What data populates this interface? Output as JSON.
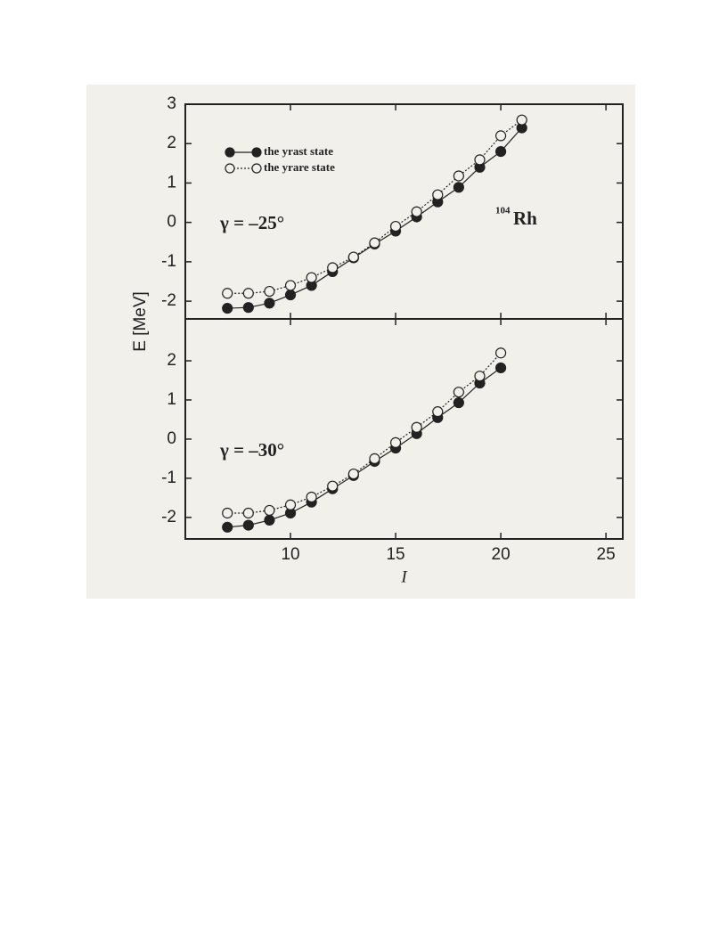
{
  "chart_data": [
    {
      "type": "line",
      "ylabel": "E [MeV]",
      "annotations": [
        "γ = –25°"
      ],
      "nucleus": {
        "mass": "104",
        "symbol": "Rh"
      },
      "legend": "upper left",
      "x": [
        7,
        8,
        9,
        10,
        11,
        12,
        13,
        14,
        15,
        16,
        17,
        18,
        19,
        20,
        21
      ],
      "series": [
        {
          "name": "the yrast state",
          "color": "#222222",
          "marker": "filled",
          "dash": "solid",
          "values": [
            -2.18,
            -2.16,
            -2.05,
            -1.84,
            -1.6,
            -1.25,
            -0.9,
            -0.55,
            -0.22,
            0.14,
            0.52,
            0.89,
            1.4,
            1.8,
            2.4
          ]
        },
        {
          "name": "the yrare state",
          "color": "#222222",
          "marker": "open",
          "dash": "dotted",
          "values": [
            -1.8,
            -1.8,
            -1.75,
            -1.6,
            -1.4,
            -1.15,
            -0.88,
            -0.52,
            -0.1,
            0.27,
            0.7,
            1.18,
            1.59,
            2.2,
            2.6
          ]
        }
      ],
      "xlim": [
        5,
        25.8
      ],
      "xticks": [
        10,
        15,
        20,
        25
      ],
      "xtick_labels": false,
      "ylim": [
        -2.45,
        3
      ],
      "yticks": [
        -2,
        -1,
        0,
        1,
        2,
        3
      ]
    },
    {
      "type": "line",
      "xlabel": "I",
      "annotations": [
        "γ = –30°"
      ],
      "x": [
        7,
        8,
        9,
        10,
        11,
        12,
        13,
        14,
        15,
        16,
        17,
        18,
        19,
        20
      ],
      "series": [
        {
          "color": "#222222",
          "marker": "filled",
          "dash": "solid",
          "values": [
            -2.25,
            -2.2,
            -2.07,
            -1.89,
            -1.61,
            -1.27,
            -0.93,
            -0.57,
            -0.23,
            0.14,
            0.55,
            0.93,
            1.43,
            1.82
          ]
        },
        {
          "color": "#222222",
          "marker": "open",
          "dash": "dotted",
          "values": [
            -1.89,
            -1.89,
            -1.82,
            -1.68,
            -1.48,
            -1.2,
            -0.89,
            -0.5,
            -0.09,
            0.3,
            0.7,
            1.2,
            1.61,
            2.2
          ]
        }
      ],
      "xlim": [
        5,
        25.8
      ],
      "xticks": [
        10,
        15,
        20,
        25
      ],
      "xtick_labels": true,
      "ylim": [
        -2.55,
        3.07
      ],
      "yticks": [
        -2,
        -1,
        0,
        1,
        2
      ]
    }
  ]
}
